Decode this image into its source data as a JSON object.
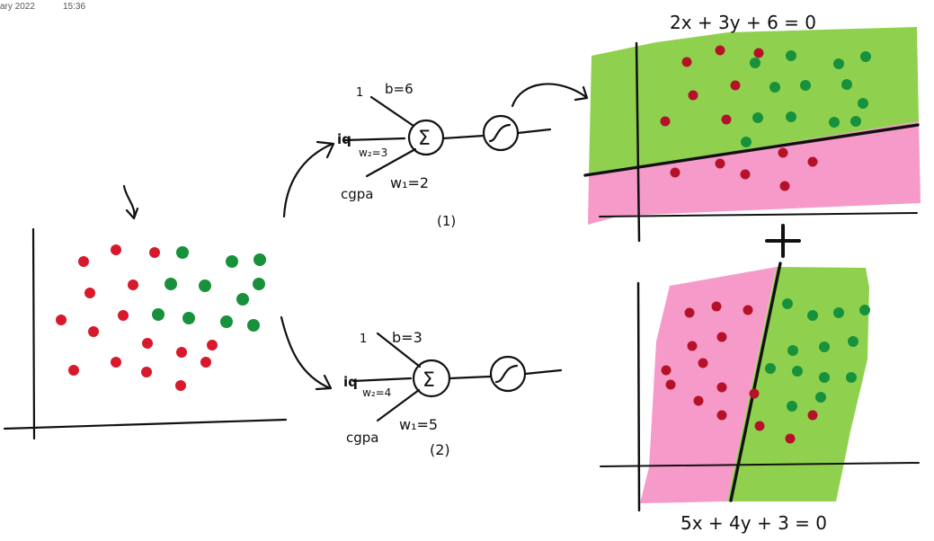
{
  "header": {
    "date": "ary 2022",
    "time": "15:36"
  },
  "colors": {
    "red": "#d7192b",
    "green": "#17913c",
    "lime": "#8fd14f",
    "pink": "#f59ac9",
    "ink": "#111111"
  },
  "scatter": {
    "red_points": [
      [
        93,
        291
      ],
      [
        129,
        278
      ],
      [
        172,
        281
      ],
      [
        100,
        326
      ],
      [
        148,
        317
      ],
      [
        68,
        356
      ],
      [
        137,
        351
      ],
      [
        104,
        369
      ],
      [
        164,
        382
      ],
      [
        236,
        384
      ],
      [
        202,
        392
      ],
      [
        82,
        412
      ],
      [
        129,
        403
      ],
      [
        163,
        414
      ],
      [
        229,
        403
      ],
      [
        201,
        429
      ]
    ],
    "green_points": [
      [
        203,
        281
      ],
      [
        258,
        291
      ],
      [
        289,
        289
      ],
      [
        190,
        316
      ],
      [
        228,
        318
      ],
      [
        270,
        333
      ],
      [
        288,
        316
      ],
      [
        176,
        350
      ],
      [
        210,
        354
      ],
      [
        252,
        358
      ],
      [
        282,
        362
      ]
    ]
  },
  "perceptron1": {
    "bias_label": "b=6",
    "input_one": "1",
    "iq_label": "iq",
    "w2_label": "w₂=3",
    "w1_label": "w₁=2",
    "cgpa_label": "cgpa",
    "sum_symbol": "Σ",
    "index_label": "(1)"
  },
  "perceptron2": {
    "bias_label": "b=3",
    "input_one": "1",
    "iq_label": "iq",
    "w2_label": "w₂=4",
    "w1_label": "w₁=5",
    "cgpa_label": "cgpa",
    "sum_symbol": "Σ",
    "index_label": "(2)"
  },
  "plot1": {
    "equation": "2x + 3y + 6 = 0",
    "green_region_points": [
      [
        840,
        70
      ],
      [
        880,
        62
      ],
      [
        933,
        71
      ],
      [
        963,
        63
      ],
      [
        862,
        97
      ],
      [
        896,
        95
      ],
      [
        942,
        94
      ],
      [
        960,
        115
      ],
      [
        843,
        131
      ],
      [
        880,
        130
      ],
      [
        928,
        136
      ],
      [
        952,
        135
      ],
      [
        830,
        158
      ]
    ],
    "red_region_points": [
      [
        764,
        69
      ],
      [
        801,
        56
      ],
      [
        844,
        59
      ],
      [
        771,
        106
      ],
      [
        818,
        95
      ],
      [
        740,
        135
      ],
      [
        808,
        133
      ],
      [
        871,
        170
      ],
      [
        904,
        180
      ],
      [
        829,
        194
      ],
      [
        873,
        207
      ],
      [
        751,
        192
      ],
      [
        801,
        182
      ]
    ]
  },
  "plus_sign": "+",
  "plot2": {
    "equation": "5x + 4y + 3 = 0",
    "green_region_points": [
      [
        876,
        338
      ],
      [
        904,
        351
      ],
      [
        933,
        348
      ],
      [
        962,
        345
      ],
      [
        882,
        390
      ],
      [
        917,
        386
      ],
      [
        949,
        380
      ],
      [
        857,
        410
      ],
      [
        887,
        413
      ],
      [
        917,
        420
      ],
      [
        947,
        420
      ],
      [
        913,
        442
      ],
      [
        881,
        452
      ]
    ],
    "red_region_points": [
      [
        767,
        348
      ],
      [
        797,
        341
      ],
      [
        832,
        345
      ],
      [
        770,
        385
      ],
      [
        803,
        375
      ],
      [
        741,
        412
      ],
      [
        782,
        404
      ],
      [
        746,
        428
      ],
      [
        803,
        431
      ],
      [
        839,
        438
      ],
      [
        777,
        446
      ],
      [
        803,
        462
      ],
      [
        879,
        488
      ],
      [
        904,
        462
      ],
      [
        845,
        474
      ]
    ]
  }
}
